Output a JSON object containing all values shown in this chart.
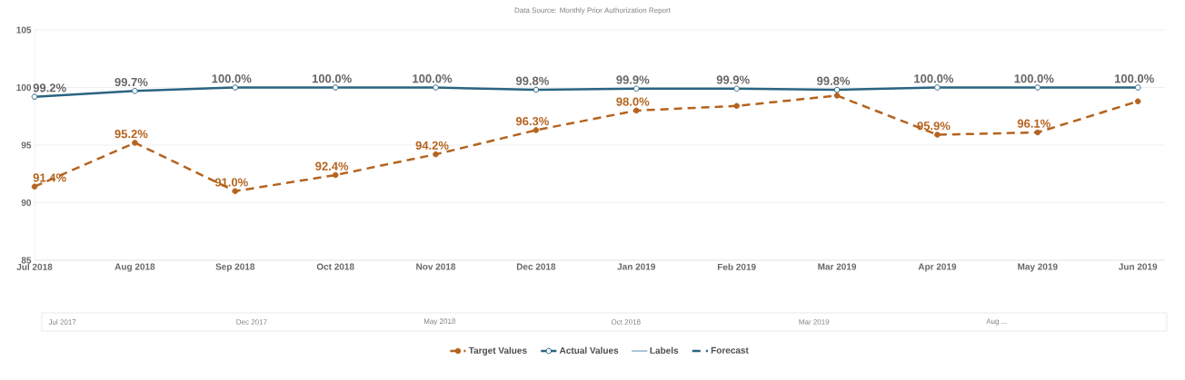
{
  "chart_data": {
    "type": "line",
    "title": "Data Source: Monthly Prior Authorization Report",
    "categories": [
      "Jul 2018",
      "Aug 2018",
      "Sep 2018",
      "Oct 2018",
      "Nov 2018",
      "Dec 2018",
      "Jan 2019",
      "Feb 2019",
      "Mar 2019",
      "Apr 2019",
      "May 2019",
      "Jun 2019"
    ],
    "series": [
      {
        "name": "Target Values",
        "color": "#b5631e",
        "marker": "circle",
        "line_style": "dashed",
        "values": [
          91.4,
          95.2,
          91.0,
          92.4,
          94.2,
          96.3,
          98.0,
          98.4,
          99.3,
          95.9,
          96.1,
          98.8
        ],
        "value_labels": [
          "91.4%",
          "95.2%",
          "91.0%",
          "92.4%",
          "94.2%",
          "96.3%",
          "98.0%",
          null,
          null,
          "95.9%",
          "96.1%",
          null
        ]
      },
      {
        "name": "Actual Values",
        "color": "#2a6482",
        "marker": "circle",
        "line_style": "solid",
        "values": [
          99.2,
          99.7,
          100.0,
          100.0,
          100.0,
          99.8,
          99.9,
          99.9,
          99.8,
          100.0,
          100.0,
          100.0
        ],
        "value_labels": [
          "99.2%",
          "99.7%",
          "100.0%",
          "100.0%",
          "100.0%",
          "99.8%",
          "99.9%",
          "99.9%",
          "99.8%",
          "100.0%",
          "100.0%",
          "100.0%"
        ]
      },
      {
        "name": "Labels",
        "color": "#6f9fc0",
        "marker": "none",
        "line_style": "solid",
        "values": [
          null,
          null,
          null,
          null,
          null,
          null,
          null,
          null,
          null,
          null,
          null,
          null
        ]
      },
      {
        "name": "Forecast",
        "color": "#2a6482",
        "marker": "none",
        "line_style": "dashed",
        "values": [
          null,
          null,
          null,
          null,
          null,
          null,
          null,
          null,
          null,
          null,
          null,
          null
        ]
      }
    ],
    "ylim": [
      85,
      105
    ],
    "yticks": [
      85,
      90,
      95,
      100,
      105
    ],
    "grid": "y",
    "legend": "bottom",
    "annotations": [
      "Jul 2017",
      "Dec 2017",
      "May 2018",
      "Oct 2018",
      "Mar 2019",
      "Aug ..."
    ]
  }
}
